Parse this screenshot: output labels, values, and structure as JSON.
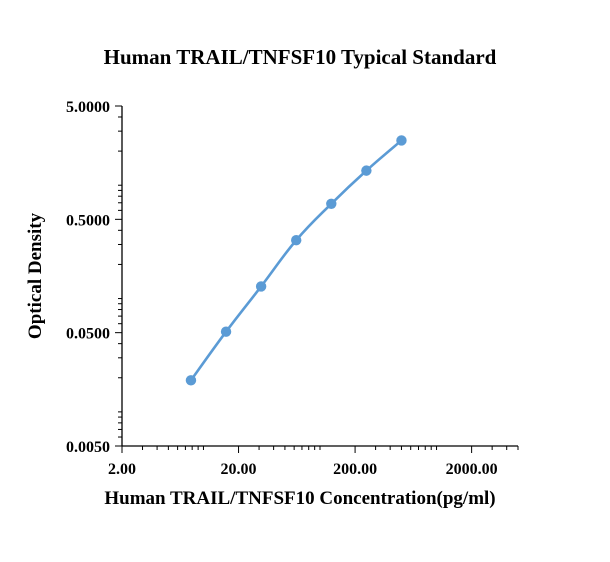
{
  "chart_data": {
    "type": "line",
    "title": "Human TRAIL/TNFSF10 Typical Standard",
    "xlabel": "Human TRAIL/TNFSF10 Concentration(pg/ml)",
    "ylabel": "Optical Density",
    "x_scale": "log",
    "y_scale": "log",
    "xlim": [
      2,
      5000
    ],
    "ylim": [
      0.005,
      5
    ],
    "x_ticks": [
      2,
      20,
      200,
      2000
    ],
    "x_tick_labels": [
      "2.00",
      "20.00",
      "200.00",
      "2000.00"
    ],
    "y_ticks": [
      0.005,
      0.05,
      0.5,
      5
    ],
    "y_tick_labels": [
      "0.0050",
      "0.0500",
      "0.5000",
      "5.0000"
    ],
    "grid": false,
    "legend": "none",
    "series": [
      {
        "color": "#5b9bd5",
        "marker": "circle",
        "smooth": true,
        "x": [
          7.81,
          15.63,
          31.25,
          62.5,
          125,
          250,
          500
        ],
        "y": [
          0.019,
          0.051,
          0.128,
          0.327,
          0.686,
          1.345,
          2.483
        ]
      }
    ]
  }
}
